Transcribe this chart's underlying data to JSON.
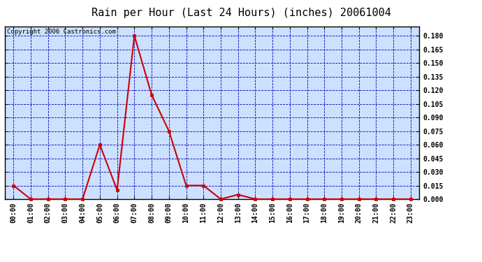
{
  "title": "Rain per Hour (Last 24 Hours) (inches) 20061004",
  "copyright_text": "Copyright 2006 Castronics.com",
  "hours": [
    "00:00",
    "01:00",
    "02:00",
    "03:00",
    "04:00",
    "05:00",
    "06:00",
    "07:00",
    "08:00",
    "09:00",
    "10:00",
    "11:00",
    "12:00",
    "13:00",
    "14:00",
    "15:00",
    "16:00",
    "17:00",
    "18:00",
    "19:00",
    "20:00",
    "21:00",
    "22:00",
    "23:00"
  ],
  "values": [
    0.015,
    0.0,
    0.0,
    0.0,
    0.0,
    0.06,
    0.01,
    0.18,
    0.115,
    0.075,
    0.015,
    0.015,
    0.0,
    0.005,
    0.0,
    0.0,
    0.0,
    0.0,
    0.0,
    0.0,
    0.0,
    0.0,
    0.0,
    0.0
  ],
  "line_color": "#cc0000",
  "marker_color": "#cc0000",
  "outer_bg": "#ffffff",
  "plot_bg": "#cce0ff",
  "grid_color": "#0000bb",
  "border_color": "#000000",
  "title_color": "#000000",
  "ylim": [
    0.0,
    0.1905
  ],
  "yticks": [
    0.0,
    0.015,
    0.03,
    0.045,
    0.06,
    0.075,
    0.09,
    0.105,
    0.12,
    0.135,
    0.15,
    0.165,
    0.18
  ],
  "title_fontsize": 11,
  "tick_fontsize": 7,
  "copyright_fontsize": 6.5,
  "linewidth": 1.5,
  "markersize": 3
}
